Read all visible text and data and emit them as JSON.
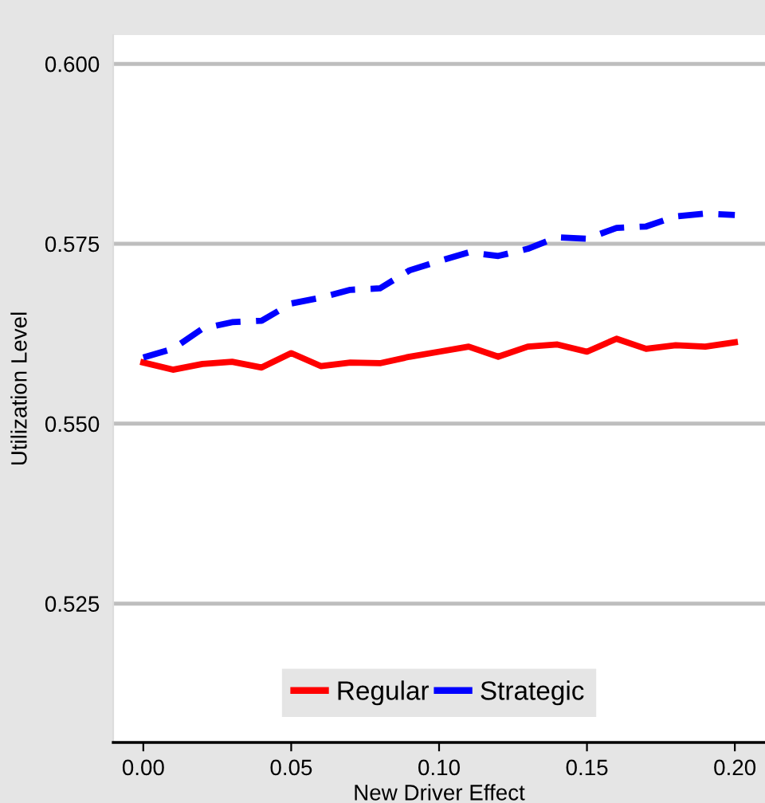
{
  "chart_data": {
    "type": "line",
    "xlabel": "New Driver Effect",
    "ylabel": "Utilization Level",
    "x": [
      0.0,
      0.01,
      0.02,
      0.03,
      0.04,
      0.05,
      0.06,
      0.07,
      0.08,
      0.09,
      0.1,
      0.11,
      0.12,
      0.13,
      0.14,
      0.15,
      0.16,
      0.17,
      0.18,
      0.19,
      0.2
    ],
    "series": [
      {
        "name": "Regular",
        "color": "#ff0000",
        "line_style": "solid",
        "values": [
          0.5585,
          0.5575,
          0.5583,
          0.5586,
          0.5578,
          0.5598,
          0.558,
          0.5585,
          0.5584,
          0.5593,
          0.56,
          0.5607,
          0.5593,
          0.5607,
          0.561,
          0.56,
          0.5618,
          0.5604,
          0.5609,
          0.5607,
          0.5613
        ]
      },
      {
        "name": "Strategic",
        "color": "#0000ff",
        "line_style": "dashed",
        "values": [
          0.5592,
          0.5604,
          0.5632,
          0.5641,
          0.5643,
          0.5667,
          0.5675,
          0.5686,
          0.5688,
          0.5713,
          0.5726,
          0.5738,
          0.5733,
          0.5743,
          0.5759,
          0.5757,
          0.5772,
          0.5774,
          0.5788,
          0.5792,
          0.579
        ]
      }
    ],
    "xlim": [
      -0.0102,
      0.2102
    ],
    "ylim": [
      0.5057,
      0.604
    ],
    "xticks": [
      {
        "value": 0.0,
        "label": "0.00"
      },
      {
        "value": 0.05,
        "label": "0.05"
      },
      {
        "value": 0.1,
        "label": "0.10"
      },
      {
        "value": 0.15,
        "label": "0.15"
      },
      {
        "value": 0.2,
        "label": "0.20"
      }
    ],
    "yticks": [
      {
        "value": 0.525,
        "label": "0.525"
      },
      {
        "value": 0.55,
        "label": "0.550"
      },
      {
        "value": 0.575,
        "label": "0.575"
      },
      {
        "value": 0.6,
        "label": "0.600"
      }
    ],
    "grid": "y",
    "legend": "bottom"
  }
}
